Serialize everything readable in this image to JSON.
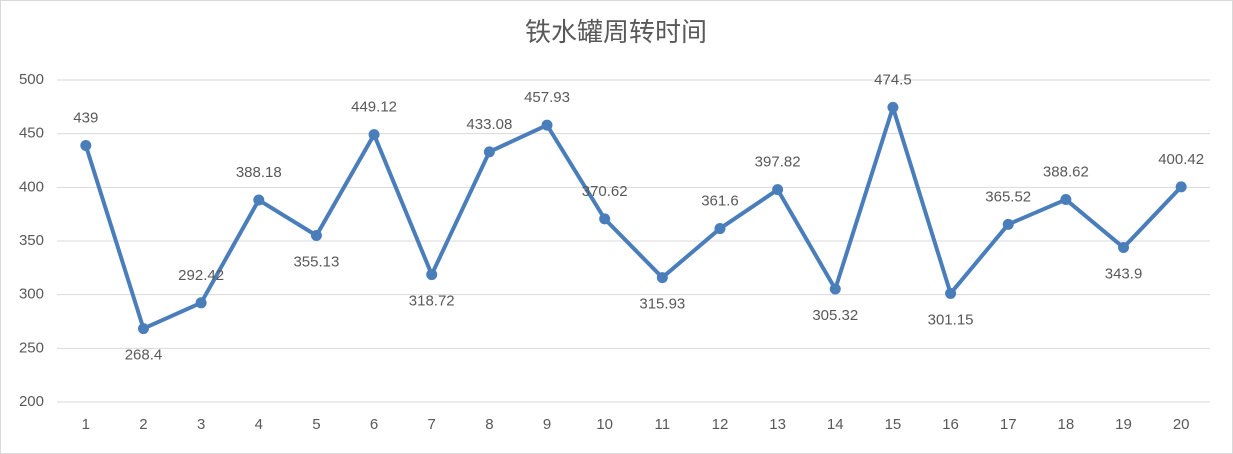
{
  "chart_data": {
    "type": "line",
    "title": "铁水罐周转时间",
    "categories": [
      "1",
      "2",
      "3",
      "4",
      "5",
      "6",
      "7",
      "8",
      "9",
      "10",
      "11",
      "12",
      "13",
      "14",
      "15",
      "16",
      "17",
      "18",
      "19",
      "20"
    ],
    "series": [
      {
        "color": "#4a7ebb",
        "values": [
          439,
          268.4,
          292.42,
          388.18,
          355.13,
          449.12,
          318.72,
          433.08,
          457.93,
          370.62,
          315.93,
          361.6,
          397.82,
          305.32,
          474.5,
          301.15,
          365.52,
          388.62,
          343.9,
          400.42
        ]
      }
    ],
    "ylim": [
      200,
      500
    ],
    "yticks": [
      200,
      250,
      300,
      350,
      400,
      450,
      500
    ],
    "grid": true
  }
}
